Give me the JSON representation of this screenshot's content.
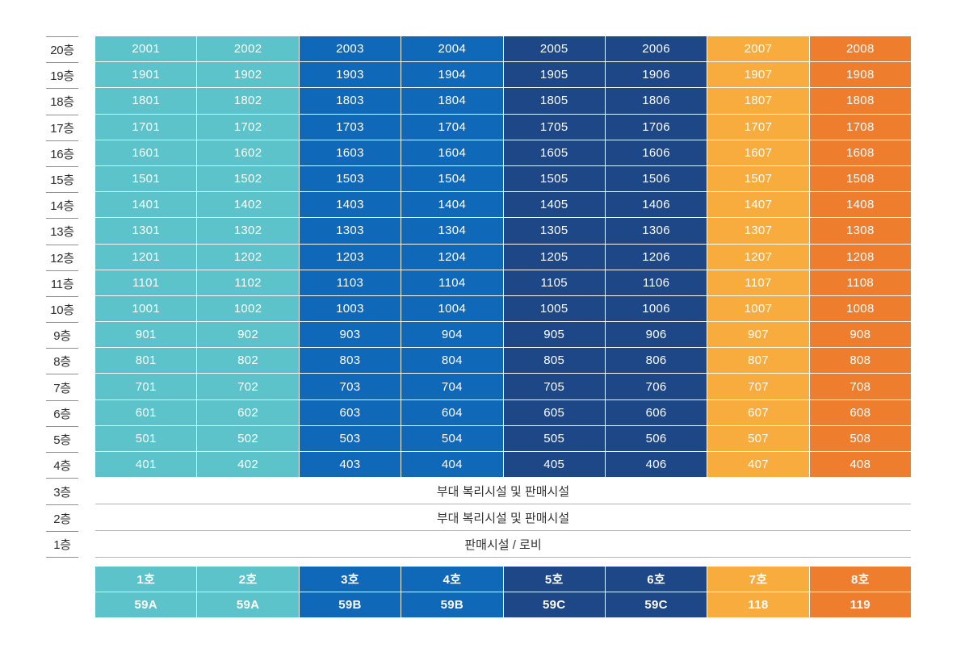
{
  "palette": {
    "teal": "#5BC3C9",
    "blue": "#1069B8",
    "navy": "#1D4787",
    "amber": "#F8AC3D",
    "orange": "#EE7E2E",
    "cell_text": "#FFFFFF",
    "floor_label_text": "#2E2E2E",
    "facility_text": "#333333",
    "label_line": "#8F8F8F",
    "facility_line": "#B3B3B3"
  },
  "column_colors": [
    "teal",
    "teal",
    "blue",
    "blue",
    "navy",
    "navy",
    "amber",
    "orange"
  ],
  "stack": {
    "floors": [
      {
        "label": "20층",
        "units": [
          "2001",
          "2002",
          "2003",
          "2004",
          "2005",
          "2006",
          "2007",
          "2008"
        ]
      },
      {
        "label": "19층",
        "units": [
          "1901",
          "1902",
          "1903",
          "1904",
          "1905",
          "1906",
          "1907",
          "1908"
        ]
      },
      {
        "label": "18층",
        "units": [
          "1801",
          "1802",
          "1803",
          "1804",
          "1805",
          "1806",
          "1807",
          "1808"
        ]
      },
      {
        "label": "17층",
        "units": [
          "1701",
          "1702",
          "1703",
          "1704",
          "1705",
          "1706",
          "1707",
          "1708"
        ]
      },
      {
        "label": "16층",
        "units": [
          "1601",
          "1602",
          "1603",
          "1604",
          "1605",
          "1606",
          "1607",
          "1608"
        ]
      },
      {
        "label": "15층",
        "units": [
          "1501",
          "1502",
          "1503",
          "1504",
          "1505",
          "1506",
          "1507",
          "1508"
        ]
      },
      {
        "label": "14층",
        "units": [
          "1401",
          "1402",
          "1403",
          "1404",
          "1405",
          "1406",
          "1407",
          "1408"
        ]
      },
      {
        "label": "13층",
        "units": [
          "1301",
          "1302",
          "1303",
          "1304",
          "1305",
          "1306",
          "1307",
          "1308"
        ]
      },
      {
        "label": "12층",
        "units": [
          "1201",
          "1202",
          "1203",
          "1204",
          "1205",
          "1206",
          "1207",
          "1208"
        ]
      },
      {
        "label": "11층",
        "units": [
          "1101",
          "1102",
          "1103",
          "1104",
          "1105",
          "1106",
          "1107",
          "1108"
        ]
      },
      {
        "label": "10층",
        "units": [
          "1001",
          "1002",
          "1003",
          "1004",
          "1005",
          "1006",
          "1007",
          "1008"
        ]
      },
      {
        "label": "9층",
        "units": [
          "901",
          "902",
          "903",
          "904",
          "905",
          "906",
          "907",
          "908"
        ]
      },
      {
        "label": "8층",
        "units": [
          "801",
          "802",
          "803",
          "804",
          "805",
          "806",
          "807",
          "808"
        ]
      },
      {
        "label": "7층",
        "units": [
          "701",
          "702",
          "703",
          "704",
          "705",
          "706",
          "707",
          "708"
        ]
      },
      {
        "label": "6층",
        "units": [
          "601",
          "602",
          "603",
          "604",
          "605",
          "606",
          "607",
          "608"
        ]
      },
      {
        "label": "5층",
        "units": [
          "501",
          "502",
          "503",
          "504",
          "505",
          "506",
          "507",
          "508"
        ]
      },
      {
        "label": "4층",
        "units": [
          "401",
          "402",
          "403",
          "404",
          "405",
          "406",
          "407",
          "408"
        ]
      }
    ],
    "facility_floors": [
      {
        "label": "3층",
        "text": "부대 복리시설 및 판매시설"
      },
      {
        "label": "2층",
        "text": "부대 복리시설 및 판매시설"
      },
      {
        "label": "1층",
        "text": "판매시설 / 로비"
      }
    ]
  },
  "legend": {
    "line_numbers": [
      "1호",
      "2호",
      "3호",
      "4호",
      "5호",
      "6호",
      "7호",
      "8호"
    ],
    "unit_types": [
      "59A",
      "59A",
      "59B",
      "59B",
      "59C",
      "59C",
      "118",
      "119"
    ]
  }
}
